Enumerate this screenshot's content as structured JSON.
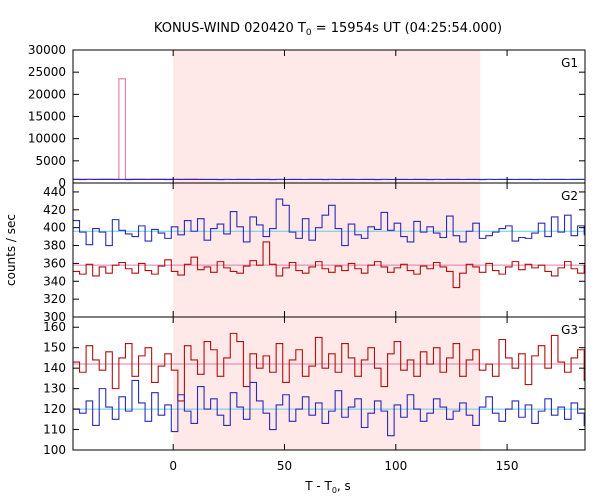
{
  "chart_data": {
    "type": "line",
    "title": "KONUS-WIND 020420 T",
    "title_sub": "0",
    "title_suffix": " = 15954s UT (04:25:54.000)",
    "xlabel": "T - T",
    "xlabel_sub": "0",
    "xlabel_suffix": ", s",
    "ylabel": "counts / sec",
    "xlim": [
      -45,
      185
    ],
    "xticks": [
      0,
      50,
      100,
      150
    ],
    "highlight_interval": [
      0,
      138
    ],
    "colors": {
      "highlight": "#ffe8e8",
      "blue": "#2b2bb8",
      "red": "#b01010",
      "pink": "#e07aa8",
      "cyan": "#66c8e8"
    },
    "panels": [
      {
        "name": "G1",
        "ylim": [
          0,
          30000
        ],
        "yticks": [
          0,
          5000,
          10000,
          15000,
          20000,
          25000,
          30000
        ],
        "series": [
          {
            "color": "pink",
            "step": 2.944,
            "start": -45,
            "values": [
              900,
              900,
              900,
              900,
              900,
              900,
              900,
              23500,
              900,
              900,
              900,
              900,
              900,
              900,
              900,
              900,
              900,
              900,
              900,
              900
            ]
          },
          {
            "color": "blue",
            "step": 2.944,
            "start": -45,
            "values": [
              800,
              780,
              820,
              790,
              810,
              800,
              790,
              820,
              780,
              810,
              800,
              790,
              810,
              800,
              780,
              820,
              790,
              810,
              800,
              790,
              810,
              800,
              780,
              820,
              790,
              810,
              800,
              790,
              810,
              800,
              780,
              820,
              790,
              810,
              800,
              790,
              810,
              800,
              780,
              820,
              790,
              810,
              800,
              790,
              810,
              800,
              780,
              820,
              790,
              810,
              800,
              790,
              810,
              800,
              780,
              820,
              790,
              810,
              800,
              790,
              810,
              800,
              780,
              820,
              790,
              810,
              800,
              790,
              810,
              800,
              780,
              820,
              790,
              810,
              800,
              790,
              810,
              800
            ]
          }
        ],
        "background_levels": [
          {
            "color": "cyan",
            "value": 850
          }
        ]
      },
      {
        "name": "G2",
        "ylim": [
          300,
          450
        ],
        "yticks": [
          300,
          320,
          340,
          360,
          380,
          400,
          420,
          440
        ],
        "series": [
          {
            "color": "blue",
            "step": 2.944,
            "start": -45,
            "values": [
              408,
              395,
              381,
              399,
              395,
              380,
              409,
              397,
              393,
              390,
              402,
              385,
              398,
              394,
              388,
              401,
              392,
              408,
              396,
              410,
              386,
              399,
              404,
              393,
              418,
              401,
              384,
              412,
              403,
              390,
              399,
              432,
              425,
              395,
              388,
              410,
              386,
              400,
              414,
              425,
              399,
              380,
              404,
              392,
              388,
              401,
              398,
              417,
              397,
              405,
              390,
              384,
              407,
              395,
              401,
              394,
              389,
              413,
              391,
              384,
              396,
              405,
              388,
              391,
              395,
              399,
              402,
              385,
              389,
              388,
              394,
              405,
              390,
              412,
              395,
              414,
              391,
              402,
              392,
              388,
              396,
              390,
              399,
              385,
              393,
              403,
              412,
              388,
              380,
              397,
              386,
              411,
              389,
              402,
              414,
              401,
              395,
              389,
              400,
              392,
              381,
              403,
              396,
              388,
              398,
              391,
              405,
              393,
              399,
              394,
              386,
              406,
              397,
              392,
              403,
              399,
              393,
              387,
              397,
              401,
              391,
              383,
              399,
              407,
              391,
              381,
              396,
              412,
              403,
              392,
              401,
              394,
              389,
              399,
              411,
              396,
              381,
              402,
              383,
              396,
              403,
              388,
              380,
              389
            ]
          },
          {
            "color": "red",
            "step": 2.944,
            "start": -45,
            "values": [
              351,
              348,
              359,
              346,
              356,
              349,
              358,
              361,
              354,
              349,
              360,
              352,
              348,
              357,
              364,
              351,
              347,
              359,
              367,
              353,
              356,
              350,
              362,
              355,
              351,
              349,
              357,
              363,
              358,
              384,
              359,
              346,
              355,
              361,
              352,
              349,
              356,
              362,
              354,
              350,
              357,
              352,
              360,
              354,
              349,
              358,
              362,
              356,
              350,
              355,
              359,
              352,
              348,
              357,
              354,
              361,
              356,
              351,
              333,
              349,
              359,
              356,
              350,
              360,
              352,
              348,
              356,
              362,
              353,
              359,
              355,
              358,
              351,
              346,
              355,
              362,
              354,
              349,
              358,
              363,
              352,
              350,
              361,
              356,
              348,
              362,
              357,
              351,
              364,
              355,
              349,
              358,
              352,
              346,
              356,
              361,
              354,
              358,
              352,
              349,
              360,
              355,
              353,
              357,
              376,
              355,
              348,
              359,
              352,
              357,
              363,
              345,
              355,
              361,
              350,
              358,
              355,
              348,
              353,
              357,
              352,
              360,
              349,
              356,
              362,
              351,
              346,
              355,
              359,
              362,
              371,
              357,
              349,
              355,
              368,
              352,
              347,
              360,
              356,
              349,
              358,
              363,
              354,
              350
            ]
          }
        ],
        "background_levels": [
          {
            "color": "cyan",
            "value": 396
          },
          {
            "color": "pink",
            "value": 358
          }
        ]
      },
      {
        "name": "G3",
        "ylim": [
          100,
          165
        ],
        "yticks": [
          100,
          110,
          120,
          130,
          140,
          150,
          160
        ],
        "series": [
          {
            "color": "red",
            "step": 2.944,
            "start": -45,
            "values": [
              143,
              138,
              151,
              144,
              139,
              148,
              130,
              145,
              152,
              136,
              146,
              150,
              133,
              141,
              147,
              139,
              124,
              151,
              144,
              137,
              153,
              149,
              136,
              145,
              157,
              153,
              131,
              147,
              140,
              146,
              138,
              152,
              133,
              144,
              149,
              136,
              141,
              155,
              140,
              147,
              138,
              152,
              145,
              136,
              144,
              150,
              140,
              131,
              147,
              153,
              139,
              144,
              136,
              148,
              142,
              150,
              138,
              145,
              152,
              136,
              144,
              149,
              139,
              142,
              136,
              154,
              145,
              140,
              147,
              132,
              146,
              151,
              140,
              156,
              143,
              138,
              145,
              149,
              134,
              146,
              139,
              152,
              144,
              137,
              148,
              142,
              150,
              138,
              146,
              141,
              153,
              136,
              144,
              148,
              139,
              143,
              151,
              137,
              145,
              149,
              132,
              144,
              140,
              152,
              136,
              145,
              148,
              141,
              137,
              149,
              143,
              153,
              139,
              146,
              130,
              144,
              142,
              150,
              137,
              146,
              141,
              139,
              148,
              152,
              143,
              135,
              146,
              141,
              150,
              139,
              144,
              148,
              136,
              143,
              155,
              138,
              145,
              141,
              149,
              137,
              144,
              150,
              134,
              145
            ]
          },
          {
            "color": "blue",
            "step": 2.944,
            "start": -45,
            "values": [
              120,
              118,
              124,
              112,
              130,
              121,
              115,
              126,
              119,
              134,
              123,
              114,
              128,
              117,
              122,
              109,
              127,
              119,
              113,
              131,
              120,
              125,
              117,
              112,
              128,
              121,
              115,
              133,
              124,
              118,
              110,
              122,
              127,
              114,
              120,
              126,
              117,
              123,
              113,
              119,
              129,
              116,
              121,
              125,
              111,
              118,
              124,
              119,
              107,
              122,
              116,
              127,
              120,
              114,
              118,
              125,
              121,
              115,
              119,
              123,
              117,
              112,
              121,
              126,
              118,
              114,
              120,
              124,
              116,
              122,
              113,
              119,
              125,
              117,
              121,
              115,
              123,
              118,
              112,
              120,
              126,
              116,
              121,
              114,
              119,
              124,
              117,
              122,
              113,
              120,
              125,
              118,
              115,
              121,
              123,
              117,
              119,
              114,
              122,
              126,
              116,
              120,
              113,
              119,
              124,
              117,
              121,
              115,
              123,
              118,
              112,
              120,
              125,
              116,
              121,
              114,
              119,
              124,
              117,
              122,
              113,
              120,
              125,
              118,
              126,
              132,
              124,
              138,
              122,
              117,
              127,
              113,
              121,
              126,
              111,
              119,
              124,
              108,
              120,
              115,
              126,
              112,
              118,
              124
            ]
          }
        ],
        "background_levels": [
          {
            "color": "pink",
            "value": 142
          },
          {
            "color": "cyan",
            "value": 120
          }
        ]
      }
    ]
  }
}
